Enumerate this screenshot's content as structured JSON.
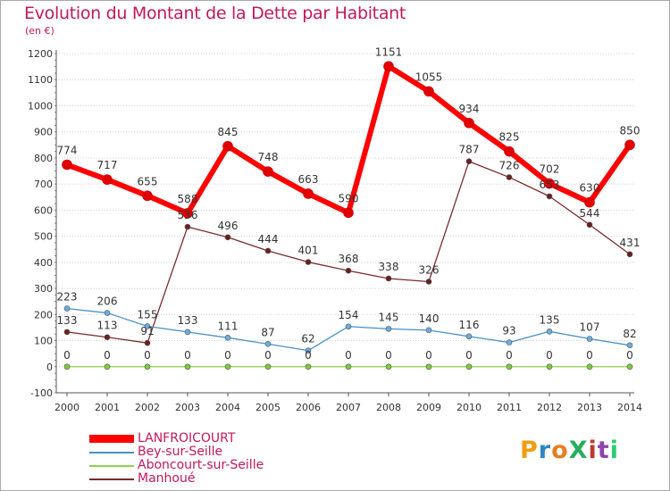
{
  "title": "Evolution du Montant de la Dette par Habitant",
  "unit": "(en €)",
  "logo": {
    "text": "ProXiti",
    "colors": [
      "#f39c12",
      "#2e86c1",
      "#e67e22",
      "#27ae60",
      "#c0392b",
      "#8e44ad",
      "#2ecc71"
    ]
  },
  "chart_data": {
    "type": "line",
    "title": "Evolution du Montant de la Dette par Habitant",
    "ylabel": "(en €)",
    "xlabel": "",
    "ylim": [
      -100,
      1200
    ],
    "yticks": [
      -100,
      0,
      100,
      200,
      300,
      400,
      500,
      600,
      700,
      800,
      900,
      1000,
      1100,
      1200
    ],
    "grid": "horizontal dotted",
    "legend_position": "bottom-left",
    "categories": [
      "2000",
      "2001",
      "2002",
      "2003",
      "2004",
      "2005",
      "2006",
      "2007",
      "2008",
      "2009",
      "2010",
      "2011",
      "2012",
      "2013",
      "2014"
    ],
    "series": [
      {
        "name": "LANFROICOURT",
        "color": "#ff0000",
        "markerColor": "#e00000",
        "width": 6,
        "values": [
          774,
          717,
          655,
          588,
          845,
          748,
          663,
          590,
          1151,
          1055,
          934,
          825,
          702,
          630,
          850
        ],
        "labels": [
          "774",
          "717",
          "655",
          "588",
          "845",
          "748",
          "663",
          "590",
          "1151",
          "1055",
          "934",
          "825",
          "702",
          "630",
          "850"
        ]
      },
      {
        "name": "Bey-sur-Seille",
        "color": "#4a90c8",
        "markerColor": "#6aaee0",
        "width": 1.3,
        "values": [
          223,
          206,
          155,
          133,
          111,
          87,
          62,
          154,
          145,
          140,
          116,
          93,
          135,
          107,
          82
        ],
        "labels": [
          "223",
          "206",
          "155",
          "133",
          "111",
          "87",
          "62",
          "154",
          "145",
          "140",
          "116",
          "93",
          "135",
          "107",
          "82"
        ]
      },
      {
        "name": "Aboncourt-sur-Seille",
        "color": "#8fd14f",
        "markerColor": "#7ccd3c",
        "width": 1.3,
        "values": [
          0,
          0,
          0,
          0,
          0,
          0,
          0,
          0,
          0,
          0,
          0,
          0,
          0,
          0,
          0
        ],
        "labels": [
          "0",
          "0",
          "0",
          "0",
          "0",
          "0",
          "0",
          "0",
          "0",
          "0",
          "0",
          "0",
          "0",
          "0",
          "0"
        ]
      },
      {
        "name": "Manhoué",
        "color": "#7a2a2a",
        "markerColor": "#6b1f1f",
        "width": 1.3,
        "values": [
          133,
          113,
          91,
          536,
          496,
          444,
          401,
          368,
          338,
          326,
          787,
          726,
          653,
          544,
          431
        ],
        "labels": [
          "133",
          "113",
          "91",
          "536",
          "496",
          "444",
          "401",
          "368",
          "338",
          "326",
          "787",
          "726",
          "653",
          "544",
          "431"
        ]
      }
    ]
  }
}
